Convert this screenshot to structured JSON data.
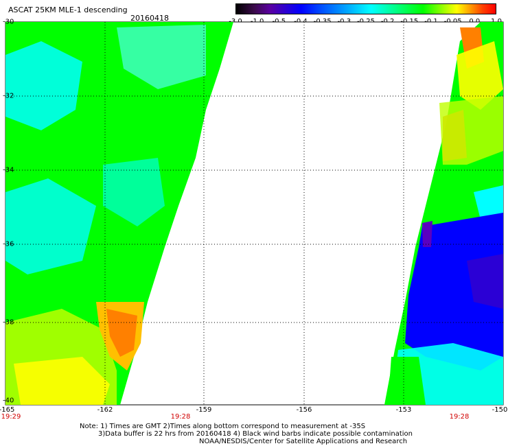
{
  "header": {
    "title": "ASCAT 25KM MLE-1 descending",
    "date": "20160418"
  },
  "colorbar": {
    "ticks": [
      "-3.0",
      "-1.0",
      "-0.5",
      "-0.4",
      "-0.35",
      "-0.3",
      "-0.25",
      "-0.2",
      "-0.15",
      "-0.1",
      "-0.05",
      "0.0",
      "1.0"
    ]
  },
  "map": {
    "lat_labels": [
      "-30",
      "-32",
      "-34",
      "-36",
      "-38",
      "-40"
    ],
    "lon_labels": [
      "-165",
      "-162",
      "-159",
      "-156",
      "-153",
      "-150"
    ],
    "time_labels": [
      "19:29",
      "19:28",
      "19:28"
    ],
    "swath_colors": {
      "cyan": "#00ffff",
      "green": "#00ff00",
      "yellow": "#ffff00",
      "orange": "#ff8000",
      "blue": "#0000ff",
      "purple": "#5a00c0"
    }
  },
  "footer": {
    "note_line1": "Note: 1) Times are GMT 2)Times along bottom correspond to measurement at -35S",
    "note_line2": "3)Data buffer is 22 hrs from 20160418 4) Black wind barbs indicate possible contamination",
    "note_line3": "NOAA/NESDIS/Center for Satellite Applications and Research"
  }
}
